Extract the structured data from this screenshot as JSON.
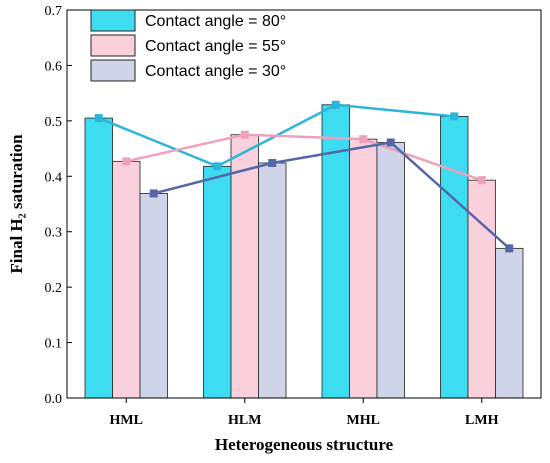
{
  "chart_data": {
    "type": "bar",
    "categories": [
      "HML",
      "HLM",
      "MHL",
      "LMH"
    ],
    "series": [
      {
        "name": "Contact angle = 80°",
        "values": [
          0.505,
          0.418,
          0.529,
          0.508
        ],
        "color": "#3ddcf0",
        "line_color": "#2bb5d8"
      },
      {
        "name": "Contact angle = 55°",
        "values": [
          0.427,
          0.475,
          0.467,
          0.393
        ],
        "color": "#f9d0dc",
        "line_color": "#f0a0bc"
      },
      {
        "name": "Contact angle = 30°",
        "values": [
          0.369,
          0.424,
          0.461,
          0.27
        ],
        "color": "#d0d4e8",
        "line_color": "#5566a8"
      }
    ],
    "overlay": "line-with-square-markers",
    "xlabel": "Heterogeneous structure",
    "ylabel": "Final H₂ saturation",
    "ylim": [
      0.0,
      0.7
    ],
    "yticks": [
      "0.0",
      "0.1",
      "0.2",
      "0.3",
      "0.4",
      "0.5",
      "0.6",
      "0.7"
    ],
    "grid": false,
    "legend_position": "top-left"
  }
}
